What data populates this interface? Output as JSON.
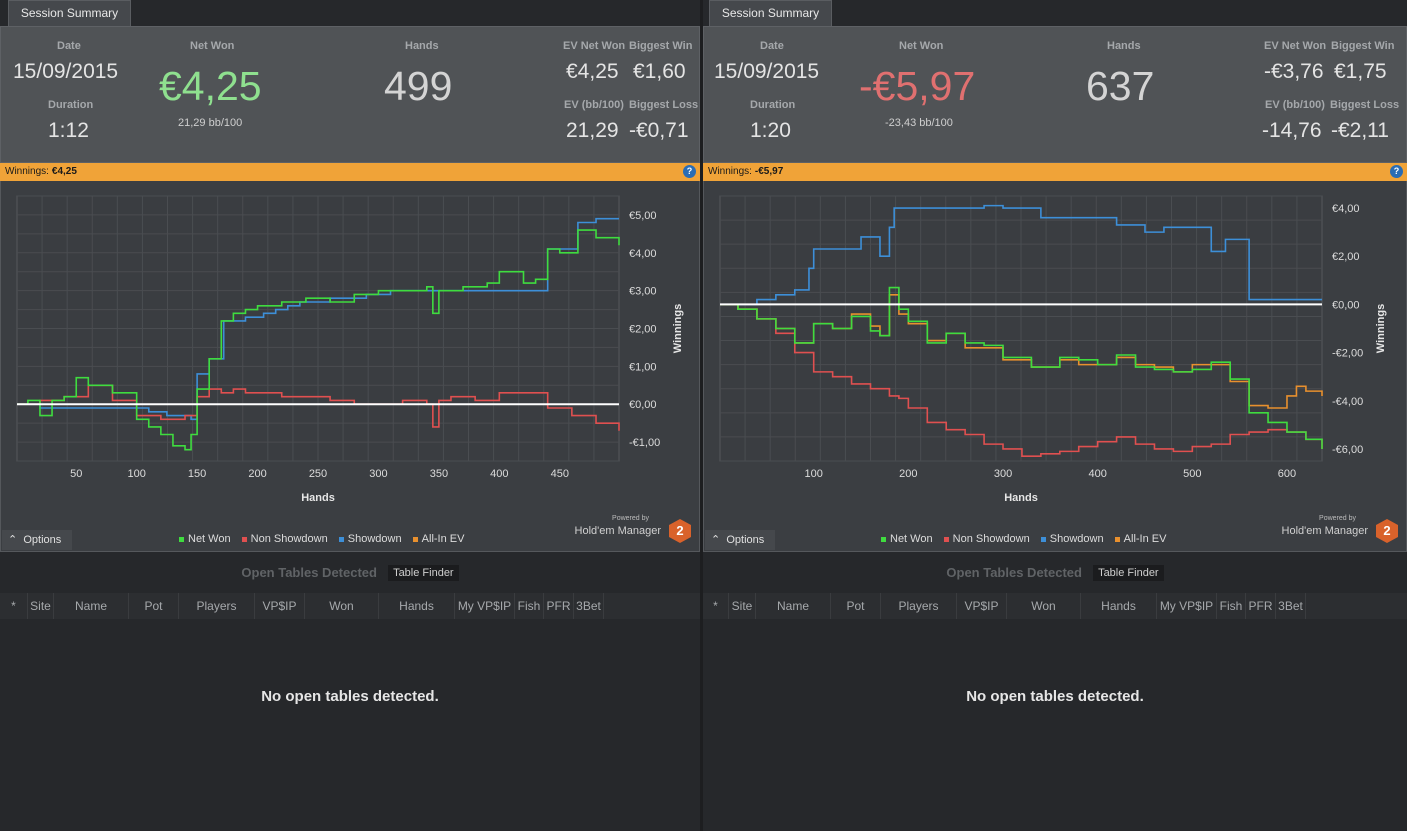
{
  "panels": [
    {
      "tab": "Session Summary",
      "date_label": "Date",
      "date": "15/09/2015",
      "duration_label": "Duration",
      "duration": "1:12",
      "net_won_label": "Net Won",
      "net_won": "€4,25",
      "net_won_color": "#8fe08f",
      "bb100": "21,29 bb/100",
      "hands_label": "Hands",
      "hands": "499",
      "ev_net_won_label": "EV Net Won",
      "ev_net_won": "€4,25",
      "biggest_win_label": "Biggest Win",
      "biggest_win": "€1,60",
      "ev_bb100_label": "EV (bb/100)",
      "ev_bb100": "21,29",
      "biggest_loss_label": "Biggest Loss",
      "biggest_loss": "-€0,71",
      "winnings_bar_label": "Winnings:",
      "winnings_bar_value": "€4,25",
      "options": "Options",
      "legend": [
        "Net Won",
        "Non Showdown",
        "Showdown",
        "All-In EV"
      ],
      "powered_by": "Powered by",
      "brand": "Hold'em Manager",
      "brand_num": "2",
      "tables_title": "Open Tables Detected",
      "table_finder": "Table Finder",
      "columns": [
        "*",
        "Site",
        "Name",
        "Pot",
        "Players",
        "VP$IP",
        "Won",
        "Hands",
        "My VP$IP",
        "Fish",
        "PFR",
        "3Bet"
      ],
      "empty_message": "No open tables detected."
    },
    {
      "tab": "Session Summary",
      "date_label": "Date",
      "date": "15/09/2015",
      "duration_label": "Duration",
      "duration": "1:20",
      "net_won_label": "Net Won",
      "net_won": "-€5,97",
      "net_won_color": "#e07070",
      "bb100": "-23,43 bb/100",
      "hands_label": "Hands",
      "hands": "637",
      "ev_net_won_label": "EV Net Won",
      "ev_net_won": "-€3,76",
      "biggest_win_label": "Biggest Win",
      "biggest_win": "€1,75",
      "ev_bb100_label": "EV (bb/100)",
      "ev_bb100": "-14,76",
      "biggest_loss_label": "Biggest Loss",
      "biggest_loss": "-€2,11",
      "winnings_bar_label": "Winnings:",
      "winnings_bar_value": "-€5,97",
      "options": "Options",
      "legend": [
        "Net Won",
        "Non Showdown",
        "Showdown",
        "All-In EV"
      ],
      "powered_by": "Powered by",
      "brand": "Hold'em Manager",
      "brand_num": "2",
      "tables_title": "Open Tables Detected",
      "table_finder": "Table Finder",
      "columns": [
        "*",
        "Site",
        "Name",
        "Pot",
        "Players",
        "VP$IP",
        "Won",
        "Hands",
        "My VP$IP",
        "Fish",
        "PFR",
        "3Bet"
      ],
      "empty_message": "No open tables detected."
    }
  ],
  "colors": {
    "net_won": "#3fdc3f",
    "non_showdown": "#e05050",
    "showdown": "#3d8fd8",
    "all_in_ev": "#e8902e",
    "winnings_bar": "#f0a338"
  },
  "chart_data": [
    {
      "type": "line",
      "xlabel": "Hands",
      "ylabel": "Winnings",
      "xlim": [
        1,
        499
      ],
      "ylim": [
        -1.5,
        5.5
      ],
      "xticks": [
        50,
        100,
        150,
        200,
        250,
        300,
        350,
        400,
        450
      ],
      "yticks": [
        -1,
        0,
        1,
        2,
        3,
        4,
        5
      ],
      "ytick_labels": [
        "-€1,00",
        "€0,00",
        "€1,00",
        "€2,00",
        "€3,00",
        "€4,00",
        "€5,00"
      ],
      "series": [
        {
          "name": "Showdown",
          "x": [
            1,
            10,
            20,
            40,
            60,
            80,
            95,
            110,
            125,
            140,
            145,
            150,
            160,
            172,
            190,
            205,
            215,
            225,
            235,
            260,
            275,
            290,
            310,
            330,
            350,
            375,
            400,
            420,
            430,
            440,
            450,
            460,
            465,
            480,
            499
          ],
          "y": [
            0,
            0,
            -0.1,
            -0.1,
            -0.1,
            -0.1,
            -0.1,
            -0.2,
            -0.3,
            -0.3,
            -0.4,
            0.8,
            1.2,
            2.2,
            2.3,
            2.4,
            2.5,
            2.6,
            2.7,
            2.8,
            2.8,
            2.9,
            3.0,
            3.0,
            3.0,
            3.0,
            3.0,
            3.0,
            3.0,
            4.1,
            4.1,
            4.1,
            4.8,
            4.9,
            4.9
          ]
        },
        {
          "name": "Non Showdown",
          "x": [
            1,
            20,
            40,
            60,
            80,
            100,
            120,
            140,
            150,
            160,
            170,
            180,
            190,
            200,
            220,
            240,
            260,
            280,
            300,
            320,
            340,
            345,
            350,
            360,
            380,
            400,
            420,
            440,
            460,
            480,
            499
          ],
          "y": [
            0,
            0.1,
            0.2,
            0.5,
            0.1,
            -0.3,
            -0.4,
            -0.3,
            0.2,
            0.4,
            0.3,
            0.4,
            0.3,
            0.3,
            0.2,
            0.2,
            0.1,
            0,
            0,
            0.1,
            0,
            -0.6,
            0.1,
            0.2,
            0.1,
            0.3,
            0.3,
            -0.1,
            -0.3,
            -0.5,
            -0.7
          ]
        },
        {
          "name": "Net Won",
          "x": [
            1,
            10,
            20,
            30,
            40,
            50,
            60,
            80,
            100,
            110,
            120,
            130,
            140,
            145,
            150,
            160,
            170,
            180,
            190,
            200,
            220,
            240,
            260,
            280,
            300,
            320,
            340,
            345,
            350,
            370,
            390,
            400,
            420,
            430,
            440,
            450,
            460,
            465,
            480,
            499
          ],
          "y": [
            0,
            0.1,
            -0.3,
            0.1,
            0.2,
            0.7,
            0.5,
            0.3,
            -0.4,
            -0.6,
            -0.8,
            -1.1,
            -1.2,
            -0.8,
            0.4,
            1.2,
            2.2,
            2.4,
            2.5,
            2.6,
            2.7,
            2.8,
            2.7,
            2.9,
            3.0,
            3.0,
            3.1,
            2.4,
            3.0,
            3.1,
            3.2,
            3.5,
            3.2,
            3.3,
            4.1,
            4.0,
            4.0,
            4.6,
            4.4,
            4.2
          ]
        }
      ]
    },
    {
      "type": "line",
      "xlabel": "Hands",
      "ylabel": "Winnings",
      "xlim": [
        1,
        637
      ],
      "ylim": [
        -6.5,
        4.5
      ],
      "xticks": [
        100,
        200,
        300,
        400,
        500,
        600
      ],
      "yticks": [
        -6,
        -4,
        -2,
        0,
        2,
        4
      ],
      "ytick_labels": [
        "-€6,00",
        "-€4,00",
        "-€2,00",
        "€0,00",
        "€2,00",
        "€4,00"
      ],
      "series": [
        {
          "name": "Showdown",
          "x": [
            1,
            40,
            60,
            80,
            95,
            100,
            130,
            150,
            160,
            170,
            175,
            180,
            185,
            200,
            230,
            260,
            280,
            300,
            340,
            380,
            420,
            450,
            470,
            500,
            520,
            535,
            540,
            560,
            600,
            637
          ],
          "y": [
            0,
            0.2,
            0.4,
            0.6,
            1.5,
            2.3,
            2.3,
            2.8,
            2.8,
            2.0,
            2.0,
            3.2,
            4.0,
            4.0,
            4.0,
            4.0,
            4.1,
            4.0,
            3.6,
            3.6,
            3.3,
            3.0,
            3.2,
            3.2,
            2.2,
            2.7,
            2.7,
            0.2,
            0.2,
            0.2
          ]
        },
        {
          "name": "Non Showdown",
          "x": [
            1,
            20,
            40,
            60,
            80,
            100,
            120,
            140,
            160,
            180,
            190,
            200,
            220,
            240,
            260,
            280,
            300,
            320,
            340,
            360,
            380,
            400,
            420,
            440,
            460,
            480,
            500,
            520,
            540,
            560,
            580,
            600,
            620,
            637
          ],
          "y": [
            0,
            -0.2,
            -0.6,
            -1.2,
            -2.0,
            -2.8,
            -3.0,
            -3.3,
            -3.5,
            -3.8,
            -3.9,
            -4.3,
            -4.9,
            -5.2,
            -5.4,
            -5.8,
            -6.0,
            -6.3,
            -6.2,
            -6.1,
            -5.9,
            -5.7,
            -5.5,
            -5.8,
            -6.0,
            -6.1,
            -5.9,
            -5.8,
            -5.4,
            -5.3,
            -5.2,
            -5.3,
            -5.6,
            -6.0
          ]
        },
        {
          "name": "All-In EV",
          "x": [
            1,
            20,
            40,
            60,
            80,
            100,
            120,
            140,
            160,
            170,
            180,
            190,
            200,
            220,
            240,
            260,
            280,
            300,
            330,
            360,
            380,
            400,
            420,
            440,
            460,
            480,
            500,
            520,
            540,
            560,
            580,
            600,
            610,
            620,
            637
          ],
          "y": [
            0,
            -0.2,
            -0.6,
            -1.0,
            -1.6,
            -0.8,
            -1.0,
            -0.4,
            -0.9,
            -1.3,
            0.4,
            -0.4,
            -0.8,
            -1.5,
            -1.2,
            -1.8,
            -1.8,
            -2.3,
            -2.6,
            -2.3,
            -2.5,
            -2.5,
            -2.2,
            -2.5,
            -2.6,
            -2.8,
            -2.5,
            -2.5,
            -3.2,
            -4.2,
            -4.3,
            -3.8,
            -3.4,
            -3.6,
            -3.8
          ]
        },
        {
          "name": "Net Won",
          "x": [
            1,
            20,
            40,
            60,
            80,
            100,
            120,
            140,
            160,
            170,
            180,
            190,
            200,
            220,
            240,
            260,
            280,
            300,
            330,
            360,
            380,
            400,
            420,
            440,
            460,
            480,
            500,
            520,
            540,
            560,
            580,
            600,
            620,
            637
          ],
          "y": [
            0,
            -0.2,
            -0.6,
            -1.0,
            -1.6,
            -0.8,
            -1.0,
            -0.5,
            -1.1,
            -1.3,
            0.7,
            -0.2,
            -0.7,
            -1.6,
            -1.2,
            -1.6,
            -1.7,
            -2.2,
            -2.6,
            -2.2,
            -2.3,
            -2.5,
            -2.1,
            -2.6,
            -2.7,
            -2.8,
            -2.7,
            -2.4,
            -3.1,
            -4.5,
            -4.9,
            -5.3,
            -5.6,
            -6.0
          ]
        }
      ]
    }
  ]
}
